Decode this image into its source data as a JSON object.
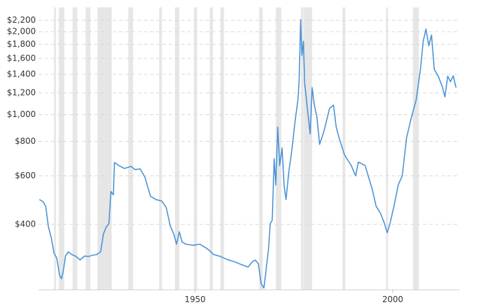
{
  "chart_data": {
    "type": "line",
    "log_y": true,
    "grid": true,
    "xlim": [
      1909,
      2017
    ],
    "ylim": [
      235,
      2450
    ],
    "xticks": [
      1950,
      2000
    ],
    "yticks": [
      {
        "value": 400,
        "label": "$400"
      },
      {
        "value": 600,
        "label": "$600"
      },
      {
        "value": 800,
        "label": "$800"
      },
      {
        "value": 1000,
        "label": "$1,000"
      },
      {
        "value": 1200,
        "label": "$1,200"
      },
      {
        "value": 1400,
        "label": "$1,400"
      },
      {
        "value": 1600,
        "label": "$1,600"
      },
      {
        "value": 1800,
        "label": "$1,800"
      },
      {
        "value": 2000,
        "label": "$2,000"
      },
      {
        "value": 2200,
        "label": "$2,200"
      }
    ],
    "shaded_ranges": [
      [
        1914.3,
        1914.8
      ],
      [
        1915.5,
        1916.9
      ],
      [
        1919.0,
        1920.2
      ],
      [
        1922.3,
        1923.5
      ],
      [
        1925.3,
        1928.9
      ],
      [
        1933.1,
        1934.3
      ],
      [
        1940.9,
        1941.6
      ],
      [
        1944.9,
        1946.0
      ],
      [
        1949.7,
        1950.5
      ],
      [
        1953.7,
        1954.5
      ],
      [
        1956.4,
        1957.3
      ],
      [
        1966.2,
        1967.1
      ],
      [
        1970.4,
        1971.8
      ],
      [
        1976.8,
        1977.4
      ],
      [
        1977.5,
        1979.6
      ],
      [
        1987.3,
        1988.0
      ],
      [
        1998.3,
        1998.8
      ],
      [
        2005.1,
        2006.6
      ]
    ],
    "shade_color": "#e6e6e6",
    "series": [
      {
        "color": "#4a93d6",
        "x": [
          1910.6,
          1911.5,
          1912.2,
          1912.9,
          1913.6,
          1914.3,
          1915.0,
          1915.7,
          1916.2,
          1916.7,
          1917.2,
          1917.9,
          1918.8,
          1919.9,
          1920.9,
          1922.0,
          1923.0,
          1924.0,
          1925.1,
          1926.1,
          1926.8,
          1927.5,
          1928.2,
          1928.7,
          1929.3,
          1929.6,
          1930.7,
          1932.1,
          1933.8,
          1934.8,
          1936.1,
          1937.3,
          1938.7,
          1940.1,
          1941.6,
          1942.7,
          1943.7,
          1944.6,
          1945.3,
          1946.0,
          1946.7,
          1947.7,
          1949.5,
          1951.2,
          1953.0,
          1954.7,
          1956.4,
          1958.2,
          1959.9,
          1961.7,
          1963.4,
          1964.5,
          1965.2,
          1966.0,
          1966.7,
          1967.4,
          1967.9,
          1968.6,
          1969.0,
          1969.5,
          1970.0,
          1970.4,
          1970.9,
          1971.4,
          1972.0,
          1972.5,
          1973.0,
          1973.7,
          1974.4,
          1975.3,
          1976.0,
          1976.3,
          1976.7,
          1977.0,
          1977.4,
          1977.7,
          1978.4,
          1979.1,
          1979.6,
          1980.1,
          1980.8,
          1981.5,
          1982.6,
          1984.0,
          1985.0,
          1985.7,
          1986.4,
          1987.8,
          1989.5,
          1990.6,
          1991.3,
          1993.0,
          1994.8,
          1995.8,
          1996.9,
          1997.9,
          1998.6,
          1999.3,
          2000.3,
          2001.4,
          2002.4,
          2003.5,
          2004.5,
          2005.9,
          2007.0,
          2007.7,
          2008.4,
          2009.1,
          2009.8,
          2010.5,
          2011.5,
          2012.5,
          2013.2,
          2013.9,
          2014.6,
          2015.3,
          2016.0
        ],
        "values": [
          492,
          484,
          465,
          391,
          358,
          315,
          302,
          262,
          254,
          274,
          307,
          318,
          311,
          306,
          297,
          307,
          306,
          309,
          311,
          318,
          369,
          391,
          403,
          527,
          512,
          671,
          654,
          638,
          649,
          632,
          636,
          593,
          506,
          492,
          486,
          460,
          395,
          369,
          339,
          376,
          345,
          339,
          336,
          339,
          327,
          311,
          306,
          298,
          293,
          286,
          280,
          293,
          297,
          288,
          244,
          235,
          269,
          329,
          402,
          414,
          693,
          555,
          901,
          654,
          757,
          555,
          492,
          620,
          730,
          950,
          1129,
          1317,
          2211,
          1641,
          1845,
          1305,
          1052,
          850,
          1254,
          1095,
          982,
          780,
          872,
          1052,
          1083,
          901,
          826,
          714,
          654,
          600,
          673,
          654,
          537,
          465,
          439,
          403,
          373,
          403,
          465,
          557,
          600,
          826,
          950,
          1129,
          1460,
          1845,
          2045,
          1778,
          1945,
          1460,
          1379,
          1267,
          1160,
          1379,
          1317,
          1384,
          1254
        ]
      }
    ]
  }
}
